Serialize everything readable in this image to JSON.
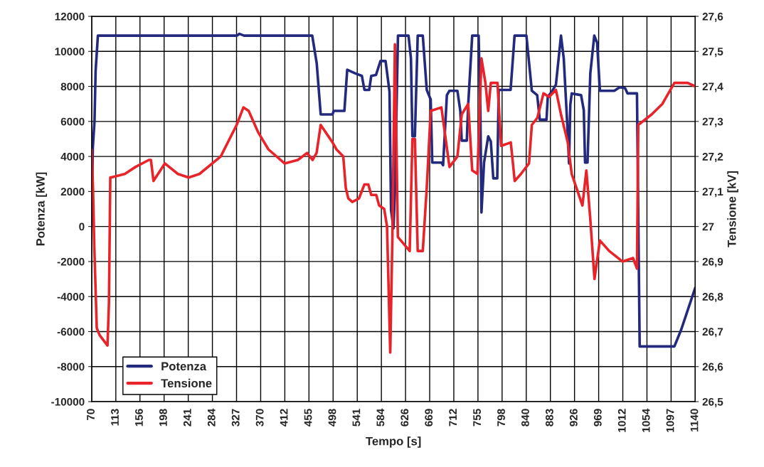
{
  "chart_data": {
    "type": "line",
    "xlabel": "Tempo [s]",
    "ylabel": "Potenza [kW]",
    "y2label": "Tensione [kV]",
    "xlim": [
      70,
      1140
    ],
    "xticks": [
      70,
      {
        "value": 112.8,
        "label": "113"
      },
      {
        "value": 155.6,
        "label": "156"
      },
      {
        "value": 198.4,
        "label": "198"
      },
      {
        "value": 241.2,
        "label": "241"
      },
      284,
      {
        "value": 326.8,
        "label": "327"
      },
      {
        "value": 369.6,
        "label": "370"
      },
      {
        "value": 412.4,
        "label": "412"
      },
      {
        "value": 455.2,
        "label": "455"
      },
      498,
      {
        "value": 540.8,
        "label": "541"
      },
      {
        "value": 583.6,
        "label": "584"
      },
      {
        "value": 626.4,
        "label": "626"
      },
      {
        "value": 669.2,
        "label": "669"
      },
      712,
      {
        "value": 754.8,
        "label": "755"
      },
      {
        "value": 797.6,
        "label": "798"
      },
      {
        "value": 840.4,
        "label": "840"
      },
      {
        "value": 883.2,
        "label": "883"
      },
      926,
      {
        "value": 968.8,
        "label": "969"
      },
      {
        "value": 1011.6,
        "label": "1012"
      },
      {
        "value": 1054.4,
        "label": "1054"
      },
      {
        "value": 1097.2,
        "label": "1097"
      },
      1140
    ],
    "ylim": [
      -10000,
      12000
    ],
    "yticks": [
      -10000,
      -8000,
      -6000,
      -4000,
      -2000,
      0,
      2000,
      4000,
      6000,
      8000,
      10000,
      12000
    ],
    "y2lim": [
      26.5,
      27.6
    ],
    "y2ticks": [
      {
        "value": 26.5,
        "label": "26,5"
      },
      {
        "value": 26.6,
        "label": "26,6"
      },
      {
        "value": 26.7,
        "label": "26,7"
      },
      {
        "value": 26.8,
        "label": "26,8"
      },
      {
        "value": 26.9,
        "label": "26,9"
      },
      27,
      {
        "value": 27.1,
        "label": "27,1"
      },
      {
        "value": 27.2,
        "label": "27,2"
      },
      {
        "value": 27.3,
        "label": "27,3"
      },
      {
        "value": 27.4,
        "label": "27,4"
      },
      {
        "value": 27.5,
        "label": "27,5"
      },
      {
        "value": 27.6,
        "label": "27,6"
      }
    ],
    "grid": true,
    "legend": "bottom left",
    "line_style": "solid",
    "marker": "none",
    "series": [
      {
        "name": "Potenza",
        "color": "#232a7e",
        "x": [
          70,
          72,
          75,
          77,
          81,
          327,
          332,
          340,
          457,
          461,
          469,
          476,
          497,
          499,
          518,
          523,
          537,
          549,
          553.6,
          562,
          565.6,
          574,
          582,
          591,
          598,
          600.7,
          605,
          607.6,
          613,
          631.7,
          636,
          638.6,
          643,
          648,
          657,
          664,
          671,
          673.8,
          690,
          693,
          699.7,
          704.3,
          718.4,
          723.5,
          726,
          735,
          737.5,
          744.6,
          756,
          759,
          761,
          765.6,
          773,
          777.6,
          782,
          789,
          791.6,
          812.7,
          819.7,
          840.7,
          850.3,
          859.8,
          864.4,
          876.3,
          878.6,
          885.7,
          893,
          902,
          906.9,
          914,
          916.3,
          918.5,
          921,
          937.6,
          942.4,
          944.7,
          949,
          954,
          961,
          966,
          971,
          996.5,
          1006,
          1015.6,
          1020,
          1036.7,
          1041.5,
          1103,
          1115,
          1140
        ],
        "values": [
          0,
          4500,
          6000,
          8900,
          10900,
          10900,
          11000,
          10900,
          10900,
          10900,
          9300,
          6400,
          6400,
          6600,
          6600,
          8950,
          8750,
          8600,
          7800,
          7800,
          8600,
          8650,
          9450,
          9450,
          7700,
          950,
          -100,
          2000,
          10900,
          10900,
          9600,
          5150,
          5150,
          10900,
          10900,
          7800,
          7250,
          3650,
          3650,
          3500,
          7500,
          7750,
          7750,
          6600,
          4900,
          4900,
          6950,
          10900,
          10900,
          6800,
          800,
          3650,
          5150,
          4850,
          2750,
          2750,
          7800,
          7800,
          10900,
          10900,
          7750,
          7500,
          6100,
          6100,
          7400,
          7700,
          8100,
          10900,
          9600,
          5300,
          3600,
          6950,
          7600,
          7500,
          6650,
          3650,
          3650,
          8750,
          10900,
          10500,
          7750,
          7750,
          7950,
          7900,
          7600,
          7600,
          -6850,
          -6850,
          -5900,
          -3500
        ]
      },
      {
        "name": "Tensione",
        "color": "#e8232a",
        "axis": "y2",
        "x": [
          70,
          72.3,
          74.7,
          79,
          84,
          98,
          100.6,
          103,
          104,
          128.6,
          147.7,
          171.4,
          175,
          179.6,
          199.7,
          222.9,
          242,
          261,
          298.8,
          327,
          339,
          348.3,
          364.8,
          383.4,
          412,
          435.6,
          452,
          461.6,
          468.7,
          476,
          497,
          504,
          516,
          520.5,
          525,
          532,
          543.8,
          553.5,
          560.4,
          565.6,
          574.5,
          579.6,
          588.6,
          593.6,
          599.3,
          603,
          607.6,
          612.8,
          633.8,
          638.6,
          643,
          648,
          657,
          664,
          671,
          690,
          704.3,
          718.4,
          726,
          737.5,
          744.6,
          754,
          761,
          768,
          773,
          777.6,
          789.4,
          796,
          813,
          820,
          831,
          845.3,
          850.3,
          860,
          871,
          881,
          893,
          902,
          914,
          921,
          940,
          947,
          954,
          961.4,
          971,
          987.5,
          1011,
          1029.7,
          1036.7,
          1039,
          1062.7,
          1081.7,
          1103,
          1126.6,
          1140
        ],
        "values": [
          27.22,
          27.11,
          26.94,
          26.71,
          26.69,
          26.66,
          26.78,
          27.14,
          27.14,
          27.15,
          27.17,
          27.19,
          27.19,
          27.13,
          27.18,
          27.15,
          27.14,
          27.15,
          27.2,
          27.29,
          27.34,
          27.33,
          27.27,
          27.22,
          27.18,
          27.19,
          27.21,
          27.19,
          27.21,
          27.29,
          27.24,
          27.22,
          27.2,
          27.11,
          27.08,
          27.07,
          27.08,
          27.12,
          27.12,
          27.09,
          27.09,
          27.06,
          27.05,
          27,
          26.64,
          26.96,
          27.52,
          26.97,
          26.93,
          27.25,
          27.25,
          26.93,
          26.93,
          27.11,
          27.33,
          27.34,
          27.17,
          27.2,
          27.32,
          27.35,
          27.16,
          27.15,
          27.48,
          27.41,
          27.33,
          27.41,
          27.41,
          27.23,
          27.24,
          27.13,
          27.15,
          27.18,
          27.29,
          27.31,
          27.38,
          27.37,
          27.39,
          27.32,
          27.24,
          27.15,
          27.06,
          27.16,
          27.02,
          26.85,
          26.96,
          26.93,
          26.9,
          26.91,
          26.88,
          27.29,
          27.32,
          27.35,
          27.41,
          27.41,
          27.4
        ]
      }
    ]
  }
}
